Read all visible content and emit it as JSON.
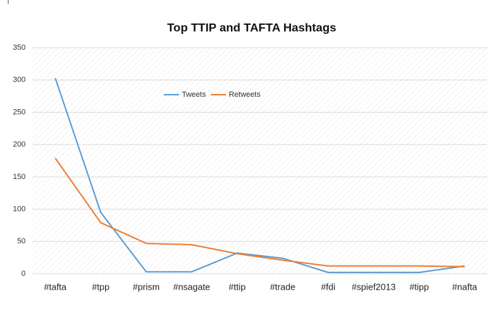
{
  "chart_data": {
    "type": "line",
    "title": "Top TTIP and TAFTA Hashtags",
    "categories": [
      "#tafta",
      "#tpp",
      "#prism",
      "#nsagate",
      "#ttip",
      "#trade",
      "#fdi",
      "#spief2013",
      "#tipp",
      "#nafta"
    ],
    "series": [
      {
        "name": "Tweets",
        "color": "#5b9bd5",
        "values": [
          303,
          95,
          3,
          3,
          32,
          24,
          2,
          2,
          2,
          12
        ]
      },
      {
        "name": "Retweets",
        "color": "#ed7d31",
        "values": [
          179,
          79,
          47,
          45,
          31,
          21,
          12,
          12,
          12,
          11
        ]
      }
    ],
    "ylim": [
      0,
      350
    ],
    "yticks": [
      0,
      50,
      100,
      150,
      200,
      250,
      300,
      350
    ],
    "grid": true,
    "legend": "top"
  }
}
